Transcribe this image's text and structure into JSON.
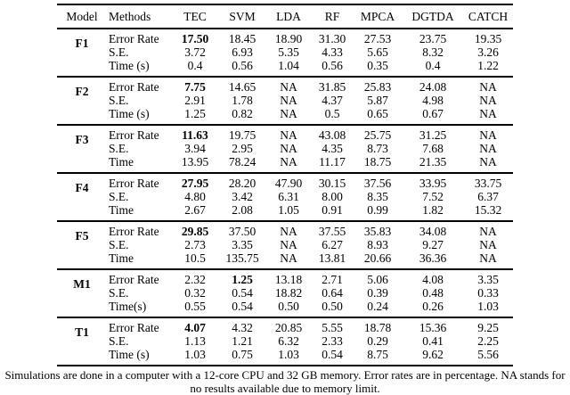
{
  "colors": {
    "text": "#000000",
    "background": "#ffffff",
    "rule": "#000000"
  },
  "table": {
    "columns": [
      "Model",
      "Methods",
      "TEC",
      "SVM",
      "LDA",
      "RF",
      "MPCA",
      "DGTDA",
      "CATCH"
    ],
    "groups": [
      {
        "model": "F1",
        "rows": [
          {
            "label": "Error Rate",
            "bold_col": 0,
            "values": [
              "17.50",
              "18.45",
              "18.90",
              "31.30",
              "27.53",
              "23.75",
              "19.35"
            ]
          },
          {
            "label": "S.E.",
            "bold_col": -1,
            "values": [
              "3.72",
              "6.93",
              "5.35",
              "4.33",
              "5.65",
              "8.32",
              "3.26"
            ]
          },
          {
            "label": "Time (s)",
            "bold_col": -1,
            "values": [
              "0.4",
              "0.56",
              "1.04",
              "0.56",
              "0.35",
              "0.4",
              "1.22"
            ]
          }
        ]
      },
      {
        "model": "F2",
        "rows": [
          {
            "label": "Error Rate",
            "bold_col": 0,
            "values": [
              "7.75",
              "14.65",
              "NA",
              "31.85",
              "25.83",
              "24.08",
              "NA"
            ]
          },
          {
            "label": "S.E.",
            "bold_col": -1,
            "values": [
              "2.91",
              "1.78",
              "NA",
              "4.37",
              "5.87",
              "4.98",
              "NA"
            ]
          },
          {
            "label": "Time (s)",
            "bold_col": -1,
            "values": [
              "1.25",
              "0.82",
              "NA",
              "0.5",
              "0.65",
              "0.67",
              "NA"
            ]
          }
        ]
      },
      {
        "model": "F3",
        "rows": [
          {
            "label": "Error Rate",
            "bold_col": 0,
            "values": [
              "11.63",
              "19.75",
              "NA",
              "43.08",
              "25.75",
              "31.25",
              "NA"
            ]
          },
          {
            "label": "S.E.",
            "bold_col": -1,
            "values": [
              "3.94",
              "2.95",
              "NA",
              "4.35",
              "8.73",
              "7.68",
              "NA"
            ]
          },
          {
            "label": "Time",
            "bold_col": -1,
            "values": [
              "13.95",
              "78.24",
              "NA",
              "11.17",
              "18.75",
              "21.35",
              "NA"
            ]
          }
        ]
      },
      {
        "model": "F4",
        "rows": [
          {
            "label": "Error Rate",
            "bold_col": 0,
            "values": [
              "27.95",
              "28.20",
              "47.90",
              "30.15",
              "37.56",
              "33.95",
              "33.75"
            ]
          },
          {
            "label": "S.E.",
            "bold_col": -1,
            "values": [
              "4.80",
              "3.42",
              "6.31",
              "8.00",
              "8.35",
              "7.52",
              "6.37"
            ]
          },
          {
            "label": "Time",
            "bold_col": -1,
            "values": [
              "2.67",
              "2.08",
              "1.05",
              "0.91",
              "0.99",
              "1.82",
              "15.32"
            ]
          }
        ]
      },
      {
        "model": "F5",
        "rows": [
          {
            "label": "Error Rate",
            "bold_col": 0,
            "values": [
              "29.85",
              "37.50",
              "NA",
              "37.55",
              "35.83",
              "34.08",
              "NA"
            ]
          },
          {
            "label": "S.E.",
            "bold_col": -1,
            "values": [
              "2.73",
              "3.35",
              "NA",
              "6.27",
              "8.93",
              "9.27",
              "NA"
            ]
          },
          {
            "label": "Time",
            "bold_col": -1,
            "values": [
              "10.5",
              "135.75",
              "NA",
              "13.81",
              "20.66",
              "36.36",
              "NA"
            ]
          }
        ]
      },
      {
        "model": "M1",
        "rows": [
          {
            "label": "Error Rate",
            "bold_col": 1,
            "values": [
              "2.32",
              "1.25",
              "13.18",
              "2.71",
              "5.06",
              "4.08",
              "3.35"
            ]
          },
          {
            "label": "S.E.",
            "bold_col": -1,
            "values": [
              "0.32",
              "0.54",
              "18.82",
              "0.64",
              "0.39",
              "0.48",
              "0.33"
            ]
          },
          {
            "label": "Time(s)",
            "bold_col": -1,
            "values": [
              "0.55",
              "0.54",
              "0.50",
              "0.50",
              "0.24",
              "0.26",
              "1.03"
            ]
          }
        ]
      },
      {
        "model": "T1",
        "rows": [
          {
            "label": "Error Rate",
            "bold_col": 0,
            "values": [
              "4.07",
              "4.32",
              "20.85",
              "5.55",
              "18.78",
              "15.36",
              "9.25"
            ]
          },
          {
            "label": "S.E.",
            "bold_col": -1,
            "values": [
              "1.13",
              "1.21",
              "6.32",
              "2.33",
              "0.29",
              "0.41",
              "2.25"
            ]
          },
          {
            "label": "Time (s)",
            "bold_col": -1,
            "values": [
              "1.03",
              "0.75",
              "1.03",
              "0.54",
              "8.75",
              "9.62",
              "5.56"
            ]
          }
        ]
      }
    ],
    "caption": "Simulations are done in a computer with a 12-core CPU and 32 GB memory. Error rates are in percentage. NA stands for no results available due to memory limit."
  }
}
